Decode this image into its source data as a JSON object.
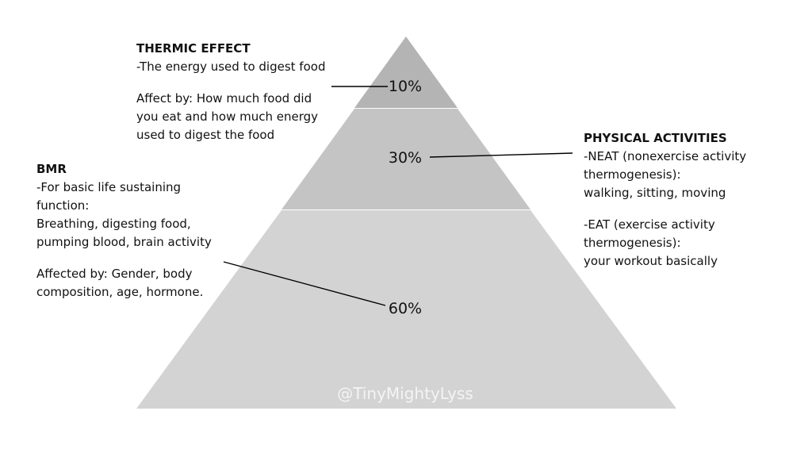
{
  "diagram": {
    "colors": {
      "top_tier": "#b4b4b4",
      "middle_tier": "#c4c4c4",
      "bottom_tier": "#d3d3d3",
      "leader_line": "#000000"
    },
    "tiers": [
      {
        "id": "thermic",
        "percent": "10%"
      },
      {
        "id": "physical",
        "percent": "30%"
      },
      {
        "id": "bmr",
        "percent": "60%"
      }
    ],
    "watermark": "@TinyMightyLyss"
  },
  "thermic": {
    "title": "THERMIC EFFECT",
    "lines": [
      "-The energy used to digest food"
    ],
    "affect_lines": [
      "Affect by: How much food did",
      "you eat and how much energy",
      "used to digest the food"
    ]
  },
  "bmr": {
    "title": "BMR",
    "lines": [
      "-For basic life sustaining",
      "function:",
      "Breathing, digesting food,",
      "pumping blood, brain activity"
    ],
    "affect_lines": [
      "Affected by: Gender, body",
      "composition, age, hormone."
    ]
  },
  "physical": {
    "title": "PHYSICAL ACTIVITIES",
    "neat_lines": [
      "-NEAT (nonexercise activity",
      "thermogenesis):",
      "walking, sitting, moving"
    ],
    "eat_lines": [
      "-EAT (exercise activity",
      "thermogenesis):",
      "your workout basically"
    ]
  }
}
